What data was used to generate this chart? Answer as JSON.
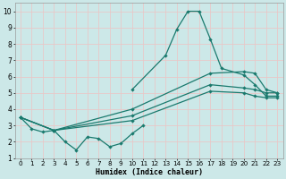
{
  "bg_color": "#cce8e8",
  "grid_color": "#e8c8c8",
  "line_color": "#1a7a6e",
  "xlabel": "Humidex (Indice chaleur)",
  "wiggly_x": [
    0,
    1,
    2,
    3,
    4,
    5,
    6,
    7,
    8,
    9,
    10,
    11
  ],
  "wiggly_y": [
    3.5,
    2.8,
    2.6,
    2.7,
    2.0,
    1.5,
    2.3,
    2.2,
    1.7,
    1.9,
    2.5,
    3.0
  ],
  "peak_x": [
    10,
    13,
    14,
    15,
    16,
    17,
    18,
    20,
    21,
    22,
    23
  ],
  "peak_y": [
    5.2,
    7.3,
    8.9,
    10.0,
    10.0,
    8.3,
    6.5,
    6.1,
    5.5,
    4.8,
    4.8
  ],
  "straight_lines": [
    {
      "x": [
        0,
        3,
        10,
        17,
        20,
        21,
        22,
        23
      ],
      "y": [
        3.5,
        2.7,
        3.3,
        5.1,
        5.0,
        4.8,
        4.7,
        4.7
      ]
    },
    {
      "x": [
        0,
        3,
        10,
        17,
        20,
        21,
        22,
        23
      ],
      "y": [
        3.5,
        2.7,
        3.6,
        5.5,
        5.3,
        5.2,
        5.0,
        5.0
      ]
    },
    {
      "x": [
        0,
        3,
        10,
        17,
        20,
        21,
        22,
        23
      ],
      "y": [
        3.5,
        2.7,
        4.0,
        6.2,
        6.3,
        6.2,
        5.2,
        5.0
      ]
    }
  ],
  "xlim": [
    -0.5,
    23.5
  ],
  "ylim": [
    1,
    10.5
  ],
  "xticks": [
    0,
    1,
    2,
    3,
    4,
    5,
    6,
    7,
    8,
    9,
    10,
    11,
    12,
    13,
    14,
    15,
    16,
    17,
    18,
    19,
    20,
    21,
    22,
    23
  ],
  "yticks": [
    1,
    2,
    3,
    4,
    5,
    6,
    7,
    8,
    9,
    10
  ]
}
